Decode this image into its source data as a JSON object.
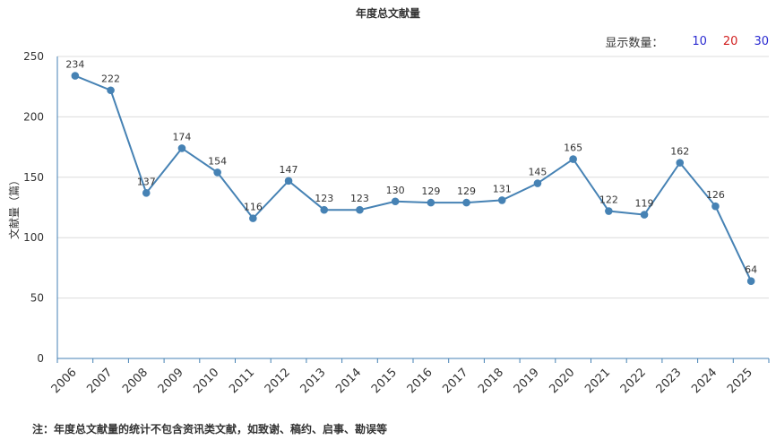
{
  "chart_data": {
    "type": "line",
    "title": "年度总文献量",
    "ylabel": "文献量（篇）",
    "xlabel": "",
    "ylim": [
      0,
      250
    ],
    "yticks": [
      0,
      50,
      100,
      150,
      200,
      250
    ],
    "grid": true,
    "categories": [
      "2006",
      "2007",
      "2008",
      "2009",
      "2010",
      "2011",
      "2012",
      "2013",
      "2014",
      "2015",
      "2016",
      "2017",
      "2018",
      "2019",
      "2020",
      "2021",
      "2022",
      "2023",
      "2024",
      "2025"
    ],
    "values": [
      234,
      222,
      137,
      174,
      154,
      116,
      147,
      123,
      123,
      130,
      129,
      129,
      131,
      145,
      165,
      122,
      119,
      162,
      126,
      64
    ],
    "series_color": "#4682b4"
  },
  "display_count": {
    "label": "显示数量：",
    "options": [
      {
        "text": "10",
        "color": "#2b2bd1"
      },
      {
        "text": "20",
        "color": "#d11f1f"
      },
      {
        "text": "30",
        "color": "#2b2bd1"
      }
    ]
  },
  "note": "注：年度总文献量的统计不包含资讯类文献，如致谢、稿约、启事、勘误等"
}
